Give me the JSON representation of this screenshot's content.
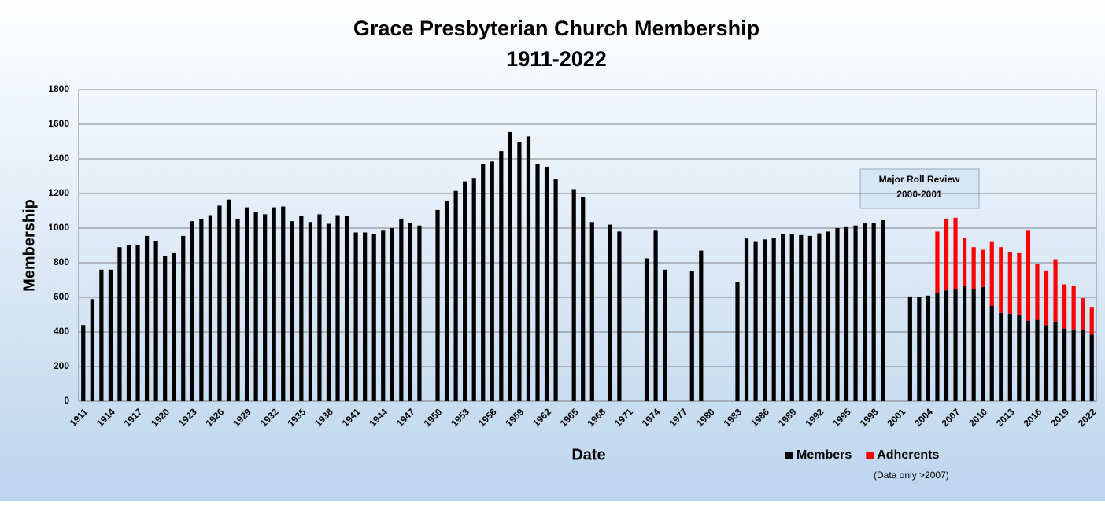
{
  "chart_data": {
    "type": "stacked_bar",
    "title": "Grace Presbyterian Church Membership",
    "subtitle": "1911-2022",
    "x_label": "Date",
    "y_label": "Membership",
    "annotations": [
      "Major Roll Review",
      "2000-2001"
    ],
    "legend_note": "(Data only >2007)",
    "categories": [
      "1911",
      null,
      null,
      "1914",
      null,
      null,
      "1917",
      null,
      null,
      "1920",
      null,
      null,
      "1923",
      null,
      null,
      "1926",
      null,
      null,
      "1929",
      null,
      null,
      "1932",
      null,
      null,
      "1935",
      null,
      null,
      "1938",
      null,
      null,
      "1941",
      null,
      null,
      "1944",
      null,
      null,
      "1947",
      null,
      null,
      "1950",
      null,
      null,
      "1953",
      null,
      null,
      "1956",
      null,
      null,
      "1959",
      null,
      null,
      "1962",
      null,
      null,
      "1965",
      null,
      null,
      "1968",
      null,
      null,
      "1971",
      null,
      null,
      "1974",
      null,
      null,
      "1977",
      null,
      null,
      "1980",
      null,
      null,
      "1983",
      null,
      null,
      "1986",
      null,
      null,
      "1989",
      null,
      null,
      "1992",
      null,
      null,
      "1995",
      null,
      null,
      "1998",
      null,
      null,
      "2001",
      null,
      null,
      "2004",
      null,
      null,
      "2007",
      null,
      null,
      "2010",
      null,
      null,
      "2013",
      null,
      null,
      "2016",
      null,
      null,
      "2019",
      null,
      null,
      "2022"
    ],
    "series": [
      {
        "name": "Members",
        "color": "#000000",
        "values": [
          440,
          590,
          760,
          760,
          890,
          900,
          900,
          955,
          925,
          840,
          855,
          955,
          1040,
          1050,
          1075,
          1130,
          1165,
          1055,
          1120,
          1095,
          1080,
          1120,
          1125,
          1040,
          1070,
          1035,
          1080,
          1025,
          1075,
          1070,
          975,
          975,
          965,
          985,
          1000,
          1055,
          1030,
          1015,
          null,
          1105,
          1155,
          1215,
          1270,
          1290,
          1370,
          1385,
          1445,
          1555,
          1500,
          1530,
          1370,
          1355,
          1285,
          null,
          1225,
          1180,
          1035,
          null,
          1020,
          980,
          null,
          null,
          825,
          985,
          760,
          null,
          null,
          750,
          870,
          null,
          null,
          null,
          690,
          940,
          920,
          935,
          945,
          965,
          965,
          960,
          955,
          970,
          980,
          1000,
          1010,
          1015,
          1030,
          1030,
          1045,
          null,
          null,
          605,
          600,
          610,
          625,
          640,
          645,
          665,
          645,
          660,
          550,
          510,
          505,
          500,
          465,
          470,
          440,
          460,
          420,
          415,
          410,
          385
        ]
      },
      {
        "name": "Adherents",
        "color": "#ff0000",
        "values": [
          null,
          null,
          null,
          null,
          null,
          null,
          null,
          null,
          null,
          null,
          null,
          null,
          null,
          null,
          null,
          null,
          null,
          null,
          null,
          null,
          null,
          null,
          null,
          null,
          null,
          null,
          null,
          null,
          null,
          null,
          null,
          null,
          null,
          null,
          null,
          null,
          null,
          null,
          null,
          null,
          null,
          null,
          null,
          null,
          null,
          null,
          null,
          null,
          null,
          null,
          null,
          null,
          null,
          null,
          null,
          null,
          null,
          null,
          null,
          null,
          null,
          null,
          null,
          null,
          null,
          null,
          null,
          null,
          null,
          null,
          null,
          null,
          null,
          null,
          null,
          null,
          null,
          null,
          null,
          null,
          null,
          null,
          null,
          null,
          null,
          null,
          null,
          null,
          null,
          null,
          null,
          null,
          null,
          null,
          355,
          415,
          415,
          280,
          245,
          215,
          370,
          380,
          355,
          355,
          520,
          325,
          315,
          360,
          255,
          250,
          185,
          160
        ]
      }
    ],
    "ylim": [
      0,
      1800
    ],
    "yticks": [
      0,
      200,
      400,
      600,
      800,
      1000,
      1200,
      1400,
      1600,
      1800
    ],
    "grid": true
  }
}
